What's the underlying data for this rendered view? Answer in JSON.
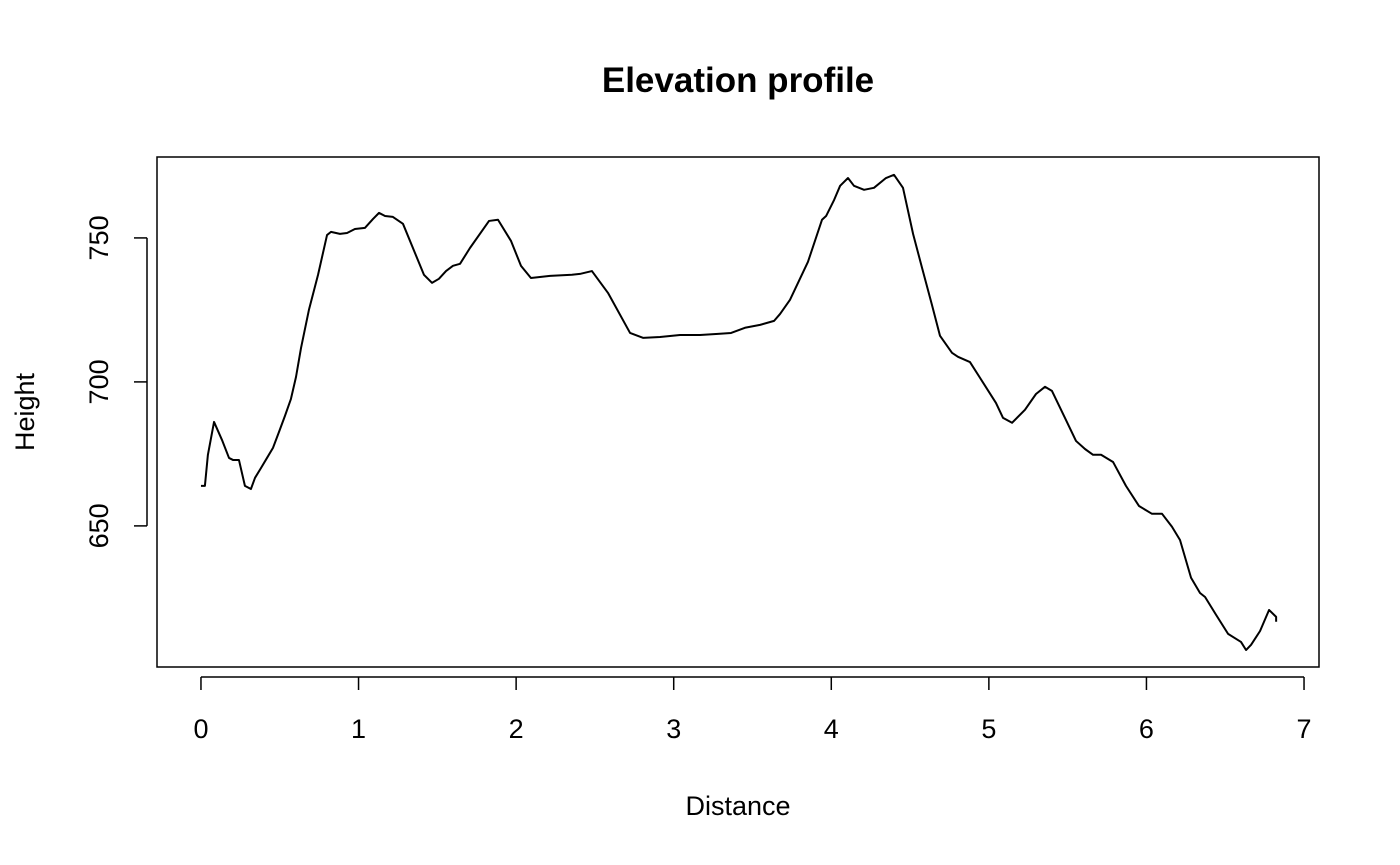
{
  "chart_data": {
    "type": "line",
    "title": "Elevation profile",
    "x_label": "Distance",
    "y_label": "Height",
    "series": [
      {
        "color": "#000000",
        "x": [
          0,
          0.025,
          0.044,
          0.083,
          0.133,
          0.178,
          0.203,
          0.241,
          0.279,
          0.317,
          0.343,
          0.381,
          0.419,
          0.457,
          0.495,
          0.533,
          0.571,
          0.603,
          0.635,
          0.685,
          0.743,
          0.8,
          0.825,
          0.882,
          0.927,
          0.977,
          1.041,
          1.092,
          1.13,
          1.168,
          1.218,
          1.282,
          1.415,
          1.466,
          1.51,
          1.555,
          1.599,
          1.644,
          1.707,
          1.828,
          1.885,
          1.967,
          2.031,
          2.094,
          2.215,
          2.354,
          2.405,
          2.481,
          2.583,
          2.723,
          2.805,
          2.913,
          3.04,
          3.167,
          3.281,
          3.364,
          3.452,
          3.548,
          3.637,
          3.675,
          3.738,
          3.852,
          3.941,
          3.967,
          4.018,
          4.056,
          4.106,
          4.144,
          4.208,
          4.271,
          4.347,
          4.398,
          4.455,
          4.519,
          4.576,
          4.639,
          4.69,
          4.766,
          4.804,
          4.88,
          4.944,
          5.045,
          5.09,
          5.147,
          5.229,
          5.299,
          5.356,
          5.4,
          5.483,
          5.553,
          5.61,
          5.661,
          5.712,
          5.788,
          5.87,
          5.953,
          6.035,
          6.099,
          6.162,
          6.213,
          6.283,
          6.34,
          6.372,
          6.442,
          6.518,
          6.6,
          6.632,
          6.664,
          6.721,
          6.778,
          6.823,
          6.823
        ],
        "values": [
          663.9,
          663.9,
          674.7,
          686.1,
          679.9,
          673.6,
          672.9,
          672.9,
          663.9,
          662.8,
          666.7,
          670.1,
          673.6,
          677.1,
          682.6,
          688.2,
          694.1,
          701.7,
          711.8,
          725.0,
          737.2,
          751.0,
          752.1,
          751.4,
          751.7,
          753.1,
          753.5,
          756.6,
          758.7,
          757.6,
          757.3,
          754.9,
          737.2,
          734.4,
          735.8,
          738.5,
          740.3,
          741.0,
          746.5,
          755.9,
          756.3,
          749.0,
          740.3,
          736.1,
          736.8,
          737.2,
          737.5,
          738.5,
          730.9,
          717.0,
          715.3,
          715.6,
          716.3,
          716.3,
          716.7,
          717.0,
          718.8,
          719.8,
          721.2,
          723.6,
          728.5,
          741.7,
          756.3,
          757.6,
          763.2,
          768.1,
          770.8,
          768.1,
          766.7,
          767.4,
          770.8,
          771.9,
          767.4,
          751.4,
          739.6,
          726.7,
          716.0,
          710.1,
          708.7,
          706.9,
          701.4,
          692.7,
          687.5,
          685.8,
          690.3,
          695.8,
          698.3,
          696.9,
          687.5,
          679.5,
          676.7,
          674.7,
          674.7,
          672.2,
          663.9,
          656.9,
          654.2,
          654.2,
          649.7,
          645.1,
          632.0,
          626.7,
          625.3,
          619.1,
          612.5,
          609.7,
          606.9,
          608.7,
          613.5,
          620.8,
          618.4,
          616.7
        ]
      }
    ],
    "xlim": [
      -0.279,
      7.095
    ],
    "ylim": [
      601.0,
      778.1
    ],
    "xticks": [
      0,
      1,
      2,
      3,
      4,
      5,
      6,
      7
    ],
    "yticks": [
      650,
      700,
      750
    ]
  }
}
